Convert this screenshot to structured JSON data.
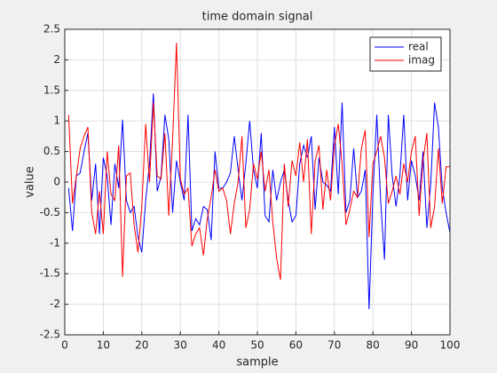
{
  "chart_data": {
    "type": "line",
    "title": "time domain signal",
    "xlabel": "sample",
    "ylabel": "value",
    "x": [
      1,
      2,
      3,
      4,
      5,
      6,
      7,
      8,
      9,
      10,
      11,
      12,
      13,
      14,
      15,
      16,
      17,
      18,
      19,
      20,
      21,
      22,
      23,
      24,
      25,
      26,
      27,
      28,
      29,
      30,
      31,
      32,
      33,
      34,
      35,
      36,
      37,
      38,
      39,
      40,
      41,
      42,
      43,
      44,
      45,
      46,
      47,
      48,
      49,
      50,
      51,
      52,
      53,
      54,
      55,
      56,
      57,
      58,
      59,
      60,
      61,
      62,
      63,
      64,
      65,
      66,
      67,
      68,
      69,
      70,
      71,
      72,
      73,
      74,
      75,
      76,
      77,
      78,
      79,
      80,
      81,
      82,
      83,
      84,
      85,
      86,
      87,
      88,
      89,
      90,
      91,
      92,
      93,
      94,
      95,
      96,
      97,
      98,
      99,
      100
    ],
    "series": [
      {
        "name": "real",
        "color": "#0000ff",
        "values": [
          -0.1,
          -0.8,
          0.1,
          0.15,
          0.5,
          0.8,
          -0.3,
          0.3,
          -0.85,
          0.4,
          0.1,
          -0.7,
          0.3,
          -0.1,
          1.02,
          -0.3,
          -0.5,
          -0.4,
          -0.9,
          -1.15,
          -0.3,
          0.3,
          1.45,
          -0.15,
          0.1,
          1.1,
          0.7,
          -0.5,
          0.35,
          0,
          -0.3,
          1.1,
          -0.8,
          -0.6,
          -0.7,
          -0.4,
          -0.45,
          -0.95,
          0.5,
          -0.1,
          -0.1,
          0,
          0.15,
          0.75,
          0.2,
          -0.3,
          0.3,
          1,
          0.2,
          -0.1,
          0.8,
          -0.55,
          -0.65,
          0.2,
          -0.3,
          0,
          0.2,
          -0.3,
          -0.65,
          -0.55,
          0.3,
          0.6,
          0.4,
          0.75,
          -0.45,
          0.4,
          0,
          -0.05,
          -0.15,
          0.9,
          -0.2,
          1.3,
          -0.5,
          -0.3,
          0.55,
          -0.25,
          -0.15,
          0.2,
          -2.08,
          -0.2,
          1.1,
          -0.3,
          -1.27,
          1.1,
          0.1,
          -0.4,
          0.1,
          1.1,
          -0.3,
          0.35,
          0.1,
          -0.3,
          0.5,
          -0.75,
          -0.05,
          1.3,
          0.9,
          -0.1,
          -0.5,
          -0.83
        ]
      },
      {
        "name": "imag",
        "color": "#ff0000",
        "values": [
          1.1,
          -0.35,
          0.1,
          0.55,
          0.75,
          0.9,
          -0.5,
          -0.85,
          -0.15,
          -0.85,
          0.5,
          -0.2,
          -0.3,
          0.6,
          -1.55,
          0.1,
          0.15,
          -0.7,
          -1.15,
          -0.4,
          0.95,
          0,
          1.3,
          0.1,
          0.05,
          0.8,
          -0.55,
          0.7,
          2.28,
          0.05,
          -0.2,
          -0.1,
          -1.05,
          -0.85,
          -0.75,
          -1.2,
          -0.6,
          -0.25,
          0.2,
          -0.15,
          -0.1,
          -0.3,
          -0.85,
          -0.35,
          0,
          0.75,
          -0.75,
          -0.45,
          0.3,
          0.05,
          0.5,
          -0.15,
          0.2,
          -0.65,
          -1.25,
          -1.6,
          0.3,
          -0.4,
          0.35,
          0.1,
          0.65,
          0,
          0.7,
          -0.85,
          0.35,
          0.6,
          -0.45,
          0.2,
          -0.3,
          0.6,
          0.95,
          0.3,
          -0.7,
          -0.45,
          -0.15,
          -0.25,
          0.55,
          0.85,
          -0.9,
          0.3,
          0.5,
          0.75,
          0.4,
          -0.35,
          -0.15,
          0.1,
          -0.2,
          0.3,
          0,
          0.5,
          0.75,
          -0.55,
          0.35,
          0.8,
          -0.75,
          -0.4,
          0.55,
          -0.35,
          0.25,
          0.25
        ]
      }
    ],
    "xlim": [
      0,
      100
    ],
    "xticks": [
      0,
      10,
      20,
      30,
      40,
      50,
      60,
      70,
      80,
      90,
      100
    ],
    "ylim": [
      -2.5,
      2.5
    ],
    "yticks": [
      -2.5,
      -2,
      -1.5,
      -1,
      -0.5,
      0,
      0.5,
      1,
      1.5,
      2,
      2.5
    ],
    "grid": true,
    "legend": "northeast"
  }
}
